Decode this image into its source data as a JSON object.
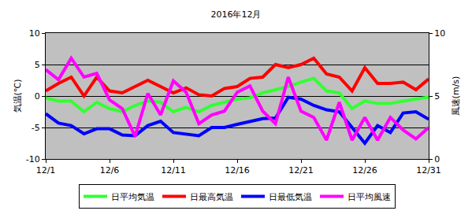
{
  "chart_data": {
    "type": "line",
    "title": "2016年12月",
    "y_label": "気温(℃)",
    "y2_label": "風速(m/s)",
    "categories": [
      "12/1",
      null,
      null,
      null,
      null,
      "12/6",
      null,
      null,
      null,
      null,
      "12/11",
      null,
      null,
      null,
      null,
      "12/16",
      null,
      null,
      null,
      null,
      "12/21",
      null,
      null,
      null,
      null,
      "12/26",
      null,
      null,
      null,
      null,
      "12/31"
    ],
    "series": [
      {
        "name": "日平均気温",
        "color": "#33ff33",
        "values": [
          -0.3,
          -0.8,
          -0.8,
          -2.5,
          -1.0,
          -2.0,
          -2.5,
          -1.5,
          -0.8,
          -1.0,
          -2.5,
          -1.8,
          -2.5,
          -1.5,
          -1.0,
          -0.5,
          -0.3,
          0.5,
          1.0,
          1.5,
          2.2,
          2.8,
          0.8,
          0.5,
          -2.0,
          -0.8,
          -1.2,
          -1.2,
          -0.8,
          -0.5,
          -0.2
        ]
      },
      {
        "name": "日最高気温",
        "color": "#ff0000",
        "values": [
          0.8,
          2.0,
          3.0,
          0.0,
          3.0,
          0.8,
          0.5,
          1.5,
          2.5,
          1.5,
          0.5,
          1.3,
          0.2,
          0.0,
          1.2,
          1.5,
          2.8,
          3.0,
          5.0,
          4.5,
          5.0,
          6.0,
          3.5,
          3.0,
          0.8,
          4.5,
          2.0,
          2.0,
          2.2,
          1.0,
          2.7
        ]
      },
      {
        "name": "日最低気温",
        "color": "#0000ff",
        "values": [
          -2.8,
          -4.3,
          -4.7,
          -6.0,
          -5.2,
          -5.2,
          -6.2,
          -6.3,
          -4.7,
          -4.0,
          -5.8,
          -6.0,
          -6.3,
          -5.0,
          -5.0,
          -4.5,
          -4.0,
          -3.6,
          -3.5,
          -0.2,
          -0.5,
          -1.5,
          -2.2,
          -2.5,
          -5.0,
          -7.5,
          -4.7,
          -5.8,
          -2.7,
          -2.5,
          -3.7
        ]
      },
      {
        "name": "日平均風速",
        "color": "#ff00ff",
        "axis": "y2",
        "values": [
          7.1,
          6.3,
          8.0,
          6.5,
          6.8,
          4.7,
          4.0,
          1.8,
          5.2,
          3.5,
          6.2,
          5.3,
          2.8,
          3.5,
          3.8,
          5.3,
          5.8,
          3.8,
          2.8,
          6.5,
          3.8,
          3.3,
          1.5,
          4.5,
          1.5,
          3.3,
          1.5,
          3.3,
          2.3,
          1.6,
          2.5
        ]
      }
    ],
    "ylim": [
      -10,
      10
    ],
    "yticks": [
      -10,
      -5,
      0,
      5,
      10
    ],
    "y2lim": [
      0,
      10
    ],
    "y2ticks": [
      0,
      5,
      10
    ],
    "grid": true,
    "legend": "bottom"
  }
}
